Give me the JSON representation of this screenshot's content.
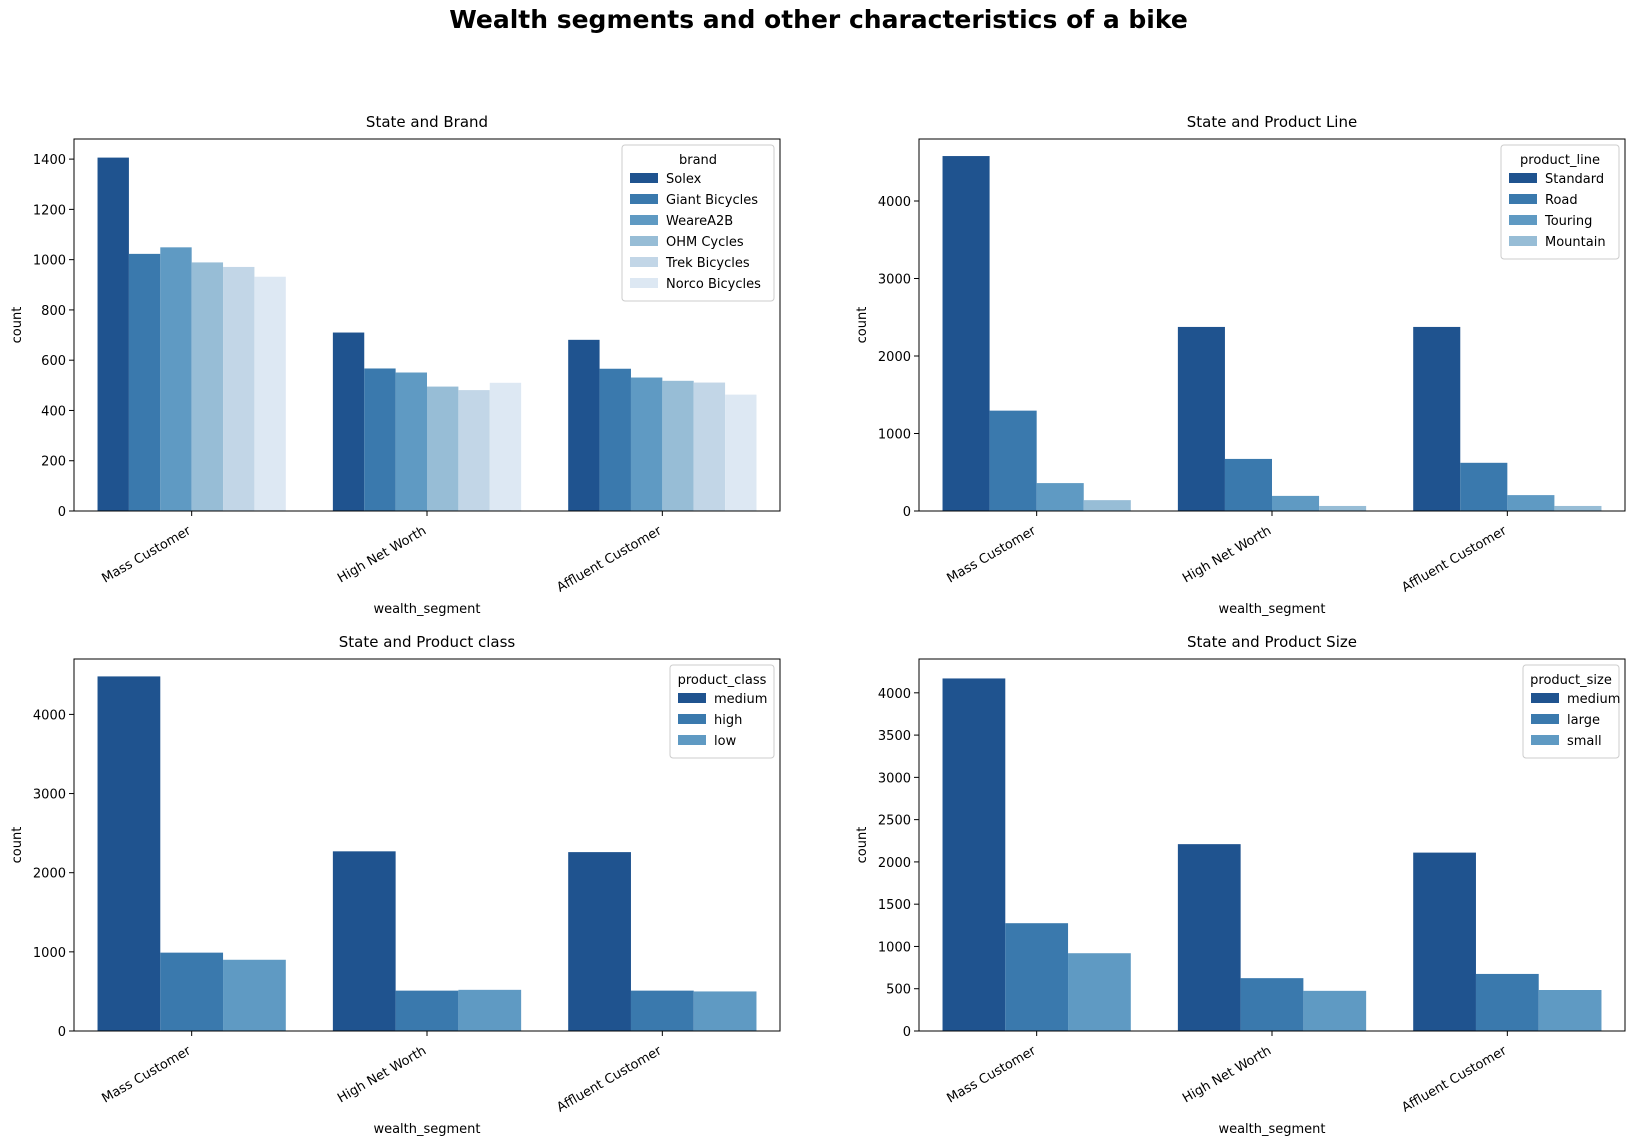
{
  "figure": {
    "title": "Wealth segments and other characteristics of a bike",
    "palette": [
      "#1f538f",
      "#3a79ad",
      "#5f9ac3",
      "#97bdd6",
      "#c2d6e7",
      "#dde8f3"
    ]
  },
  "chart_data": [
    {
      "type": "bar",
      "title": "State and Brand",
      "xlabel": "wealth_segment",
      "ylabel": "count",
      "categories": [
        "Mass Customer",
        "High Net Worth",
        "Affluent Customer"
      ],
      "ylim": [
        0,
        1480
      ],
      "yticks": [
        0,
        200,
        400,
        600,
        800,
        1000,
        1200,
        1400
      ],
      "legend_title": "brand",
      "legend_position": "top-right",
      "grid": false,
      "series": [
        {
          "name": "Solex",
          "values": [
            1406,
            710,
            681
          ]
        },
        {
          "name": "Giant Bicycles",
          "values": [
            1023,
            567,
            566
          ]
        },
        {
          "name": "WeareA2B",
          "values": [
            1049,
            551,
            531
          ]
        },
        {
          "name": "OHM Cycles",
          "values": [
            989,
            495,
            518
          ]
        },
        {
          "name": "Trek Bicycles",
          "values": [
            971,
            481,
            511
          ]
        },
        {
          "name": "Norco Bicycles",
          "values": [
            932,
            510,
            463
          ]
        }
      ]
    },
    {
      "type": "bar",
      "title": "State and Product Line",
      "xlabel": "wealth_segment",
      "ylabel": "count",
      "categories": [
        "Mass Customer",
        "High Net Worth",
        "Affluent Customer"
      ],
      "ylim": [
        0,
        4800
      ],
      "yticks": [
        0,
        1000,
        2000,
        3000,
        4000
      ],
      "legend_title": "product_line",
      "legend_position": "top-right",
      "grid": false,
      "series": [
        {
          "name": "Standard",
          "values": [
            4580,
            2375,
            2375
          ]
        },
        {
          "name": "Road",
          "values": [
            1295,
            672,
            622
          ]
        },
        {
          "name": "Touring",
          "values": [
            360,
            195,
            205
          ]
        },
        {
          "name": "Mountain",
          "values": [
            140,
            65,
            65
          ]
        }
      ]
    },
    {
      "type": "bar",
      "title": "State and Product class",
      "xlabel": "wealth_segment",
      "ylabel": "count",
      "categories": [
        "Mass Customer",
        "High Net Worth",
        "Affluent Customer"
      ],
      "ylim": [
        0,
        4700
      ],
      "yticks": [
        0,
        1000,
        2000,
        3000,
        4000
      ],
      "legend_title": "product_class",
      "legend_position": "top-right",
      "grid": false,
      "series": [
        {
          "name": "medium",
          "values": [
            4480,
            2270,
            2260
          ]
        },
        {
          "name": "high",
          "values": [
            990,
            510,
            510
          ]
        },
        {
          "name": "low",
          "values": [
            900,
            520,
            500
          ]
        }
      ]
    },
    {
      "type": "bar",
      "title": "State and Product Size",
      "xlabel": "wealth_segment",
      "ylabel": "count",
      "categories": [
        "Mass Customer",
        "High Net Worth",
        "Affluent Customer"
      ],
      "ylim": [
        0,
        4400
      ],
      "yticks": [
        0,
        500,
        1000,
        1500,
        2000,
        2500,
        3000,
        3500,
        4000
      ],
      "legend_title": "product_size",
      "legend_position": "top-right",
      "grid": false,
      "series": [
        {
          "name": "medium",
          "values": [
            4170,
            2210,
            2110
          ]
        },
        {
          "name": "large",
          "values": [
            1275,
            625,
            675
          ]
        },
        {
          "name": "small",
          "values": [
            920,
            475,
            485
          ]
        }
      ]
    }
  ]
}
